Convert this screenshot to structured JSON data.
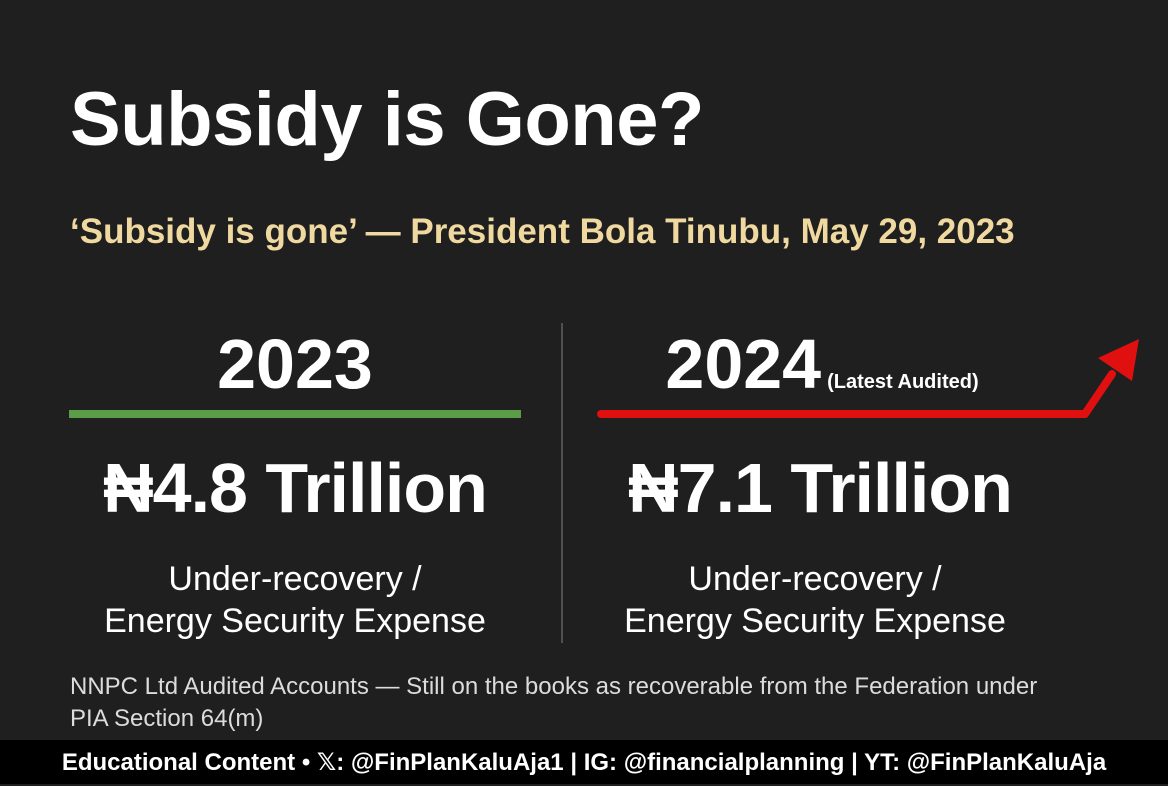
{
  "colors": {
    "background": "#1f1f1f",
    "quote": "#f0d9a0",
    "bar_2023": "#5a9c48",
    "bar_2024": "#e01010",
    "footer_bg": "#000000"
  },
  "title": "Subsidy is Gone?",
  "quote": "‘Subsidy is gone’ — President Bola Tinubu, May 29, 2023",
  "columns": [
    {
      "year": "2023",
      "note": "",
      "amount": "₦4.8 Trillion",
      "desc_line1": "Under-recovery /",
      "desc_line2": "Energy Security Expense"
    },
    {
      "year": "2024",
      "note": "(Latest Audited)",
      "amount": "₦7.1 Trillion",
      "desc_line1": "Under-recovery /",
      "desc_line2": "Energy Security Expense",
      "trend_icon": "arrow-up-right-icon"
    }
  ],
  "source_note": "NNPC Ltd Audited Accounts — Still on the books as recoverable from the Federation under PIA Section 64(m)",
  "footer": "Educational Content • 𝕏: @FinPlanKaluAja1 | IG: @financialplanning | YT: @FinPlanKaluAja"
}
